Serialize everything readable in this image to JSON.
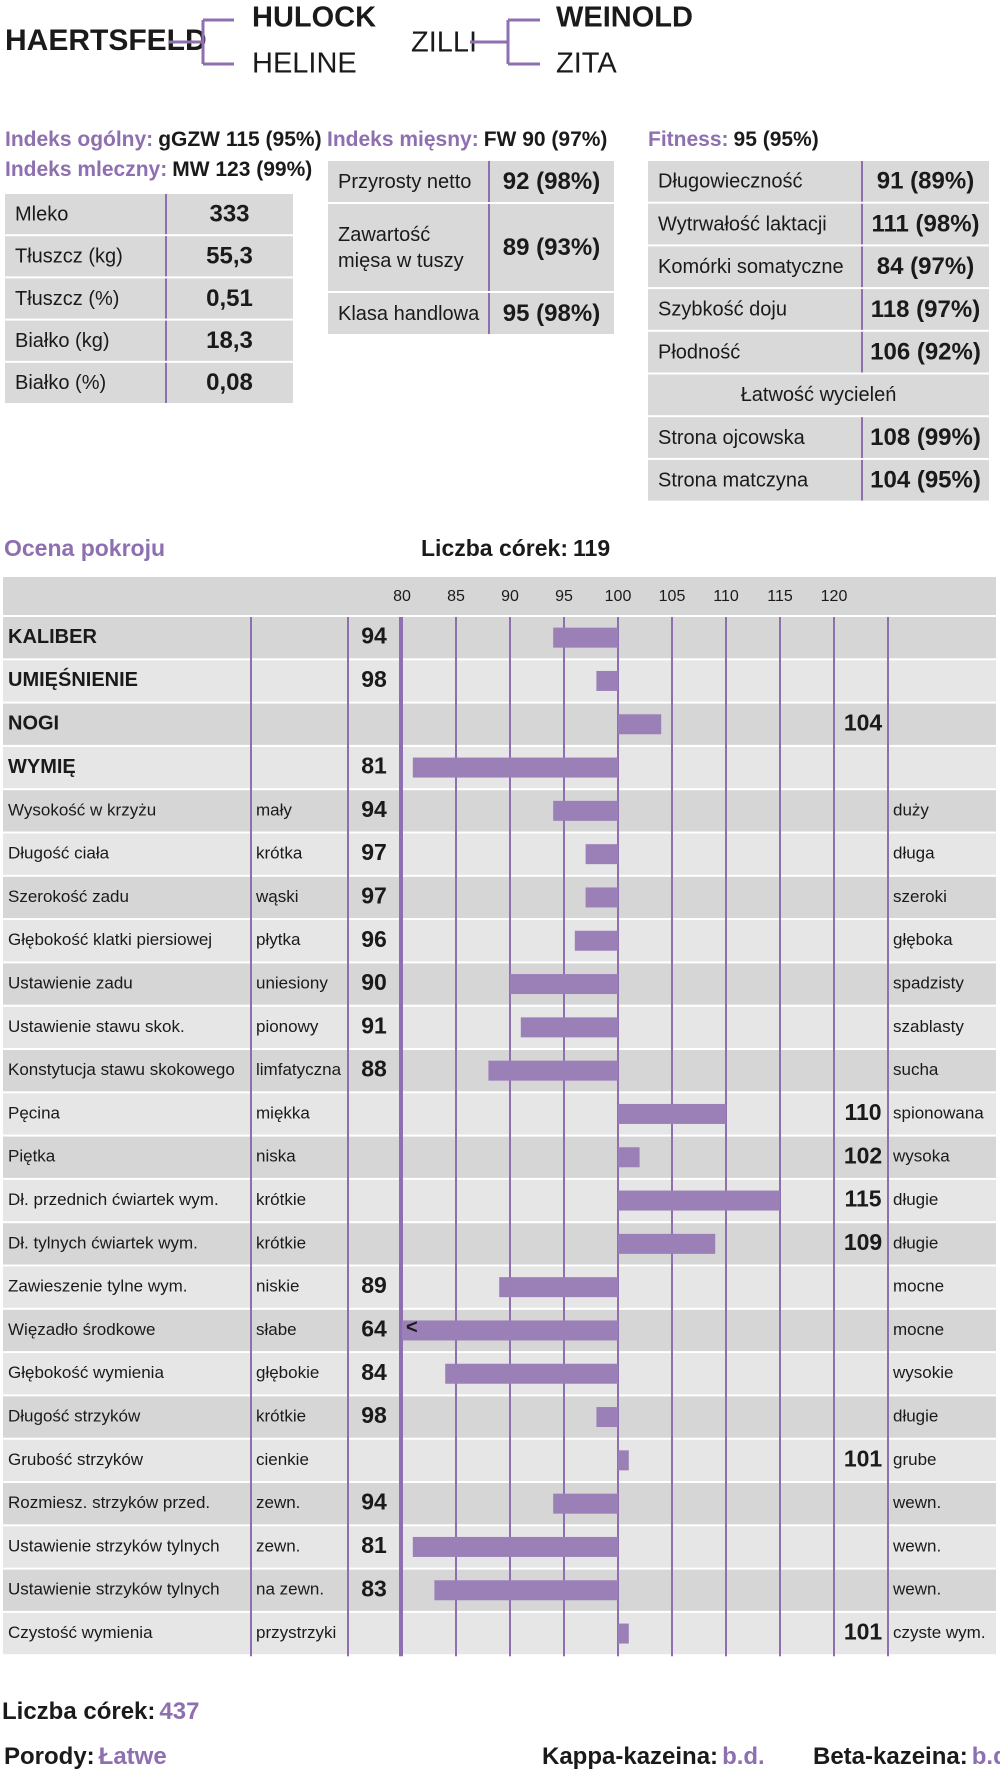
{
  "header": {
    "sire": "HAERTSFELD",
    "sire_sire": "HULOCK",
    "sire_dam": "HELINE",
    "dam": "ZILLI",
    "dam_sire": "WEINOLD",
    "dam_dam": "ZITA"
  },
  "milk": {
    "lines": [
      {
        "label": "Indeks ogólny:",
        "value": "gGZW 115 (95%)"
      },
      {
        "label": "Indeks mleczny:",
        "value": "MW 123 (99%)"
      }
    ],
    "rows": [
      [
        "Mleko",
        "333"
      ],
      [
        "Tłuszcz (kg)",
        "55,3"
      ],
      [
        "Tłuszcz (%)",
        "0,51"
      ],
      [
        "Białko (kg)",
        "18,3"
      ],
      [
        "Białko (%)",
        "0,08"
      ]
    ]
  },
  "meat": {
    "lines": [
      {
        "label": "Indeks mięsny:",
        "value": "FW 90 (97%)"
      }
    ],
    "rows": [
      [
        "Przyrosty netto",
        "92 (98%)"
      ],
      [
        [
          "Zawartość",
          "mięsa w tuszy"
        ],
        "89 (93%)"
      ],
      [
        "Klasa handlowa",
        "95 (98%)"
      ]
    ]
  },
  "fitness": {
    "lines": [
      {
        "label": "Fitness:",
        "value": "95 (95%)"
      }
    ],
    "rows": [
      [
        "Długowieczność",
        "91 (89%)"
      ],
      [
        "Wytrwałość laktacji",
        "111 (98%)"
      ],
      [
        "Komórki somatyczne",
        "84 (97%)"
      ],
      [
        "Szybkość doju",
        "118 (97%)"
      ],
      [
        "Płodność",
        "106 (92%)"
      ],
      [
        "Łatwość wycieleń"
      ],
      [
        "Strona ojcowska",
        "108 (99%)"
      ],
      [
        "Strona matczyna",
        "104 (95%)"
      ]
    ]
  },
  "profile": {
    "title": "Ocena pokroju",
    "daughters_label": "Liczba córek:",
    "daughters": "119",
    "xlim": [
      80,
      120
    ],
    "xticks": [
      80,
      85,
      90,
      95,
      100,
      105,
      110,
      115,
      120
    ],
    "overflow_marker": "<",
    "rows": [
      {
        "trait": "KALIBER",
        "bold": true,
        "value": 94
      },
      {
        "trait": "UMIĘŚNIENIE",
        "bold": true,
        "value": 98
      },
      {
        "trait": "NOGI",
        "bold": true,
        "value": 104
      },
      {
        "trait": "WYMIĘ",
        "bold": true,
        "value": 81
      },
      {
        "trait": "Wysokość w krzyżu",
        "low": "mały",
        "high": "duży",
        "value": 94
      },
      {
        "trait": "Długość ciała",
        "low": "krótka",
        "high": "długa",
        "value": 97
      },
      {
        "trait": "Szerokość zadu",
        "low": "wąski",
        "high": "szeroki",
        "value": 97
      },
      {
        "trait": "Głębokość klatki piersiowej",
        "low": "płytka",
        "high": "głęboka",
        "value": 96
      },
      {
        "trait": "Ustawienie zadu",
        "low": "uniesiony",
        "high": "spadzisty",
        "value": 90
      },
      {
        "trait": "Ustawienie stawu skok.",
        "low": "pionowy",
        "high": "szablasty",
        "value": 91
      },
      {
        "trait": "Konstytucja stawu skokowego",
        "low": "limfatyczna",
        "high": "sucha",
        "value": 88
      },
      {
        "trait": "Pęcina",
        "low": "miękka",
        "high": "spionowana",
        "value": 110
      },
      {
        "trait": "Piętka",
        "low": "niska",
        "high": "wysoka",
        "value": 102
      },
      {
        "trait": "Dł. przednich ćwiartek wym.",
        "low": "krótkie",
        "high": "długie",
        "value": 115
      },
      {
        "trait": "Dł. tylnych ćwiartek wym.",
        "low": "krótkie",
        "high": "długie",
        "value": 109
      },
      {
        "trait": "Zawieszenie tylne wym.",
        "low": "niskie",
        "high": "mocne",
        "value": 89
      },
      {
        "trait": "Więzadło środkowe",
        "low": "słabe",
        "high": "mocne",
        "value": 64
      },
      {
        "trait": "Głębokość wymienia",
        "low": "głębokie",
        "high": "wysokie",
        "value": 84
      },
      {
        "trait": "Długość strzyków",
        "low": "krótkie",
        "high": "długie",
        "value": 98
      },
      {
        "trait": "Grubość strzyków",
        "low": "cienkie",
        "high": "grube",
        "value": 101
      },
      {
        "trait": "Rozmiesz. strzyków przed.",
        "low": "zewn.",
        "high": "wewn.",
        "value": 94
      },
      {
        "trait": "Ustawienie strzyków tylnych",
        "low": "zewn.",
        "high": "wewn.",
        "value": 81
      },
      {
        "trait": "Ustawienie strzyków tylnych",
        "low": "na zewn.",
        "high": "wewn.",
        "value": 83
      },
      {
        "trait": "Czystość wymienia",
        "low": "przystrzyki",
        "high": "czyste wym.",
        "value": 101
      }
    ]
  },
  "footer": {
    "daughters_label": "Liczba córek:",
    "daughters": "437",
    "calving_label": "Porody:",
    "calving": "Łatwe",
    "kappa_label": "Kappa-kazeina:",
    "kappa": "b.d.",
    "beta_label": "Beta-kazeina:",
    "beta": "b.d."
  }
}
